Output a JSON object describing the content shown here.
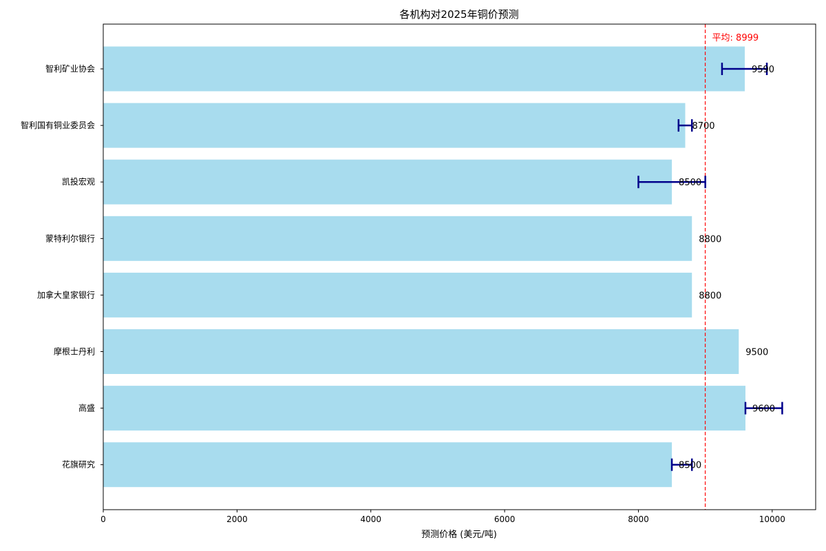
{
  "chart_data": {
    "type": "bar",
    "orientation": "horizontal",
    "title": "各机构对2025年铜价预测",
    "xlabel": "预测价格 (美元/吨)",
    "ylabel": "",
    "xlim": [
      0,
      10650
    ],
    "xticks": [
      0,
      2000,
      4000,
      6000,
      8000,
      10000
    ],
    "xtick_labels": [
      "0",
      "2000",
      "4000",
      "6000",
      "8000",
      "10000"
    ],
    "categories": [
      "智利矿业协会",
      "智利国有铜业委员会",
      "凯投宏观",
      "蒙特利尔银行",
      "加拿大皇家银行",
      "摩根士丹利",
      "高盛",
      "花旗研究"
    ],
    "values": [
      9590,
      8700,
      8500,
      8800,
      8800,
      9500,
      9600,
      8500
    ],
    "value_labels": [
      "9590",
      "8700",
      "8500",
      "8800",
      "8800",
      "9500",
      "9600",
      "8500"
    ],
    "error_ranges": [
      [
        9250,
        9920
      ],
      [
        8600,
        8800
      ],
      [
        8000,
        9000
      ],
      null,
      null,
      null,
      [
        9600,
        10150
      ],
      [
        8500,
        8800
      ]
    ],
    "reference_line": {
      "value": 8999,
      "label": "平均: 8999",
      "color": "#ff0000",
      "style": "dashed"
    },
    "bar_color": "#a8dcee",
    "error_bar_color": "#00008b",
    "grid": false,
    "legend": "none"
  }
}
